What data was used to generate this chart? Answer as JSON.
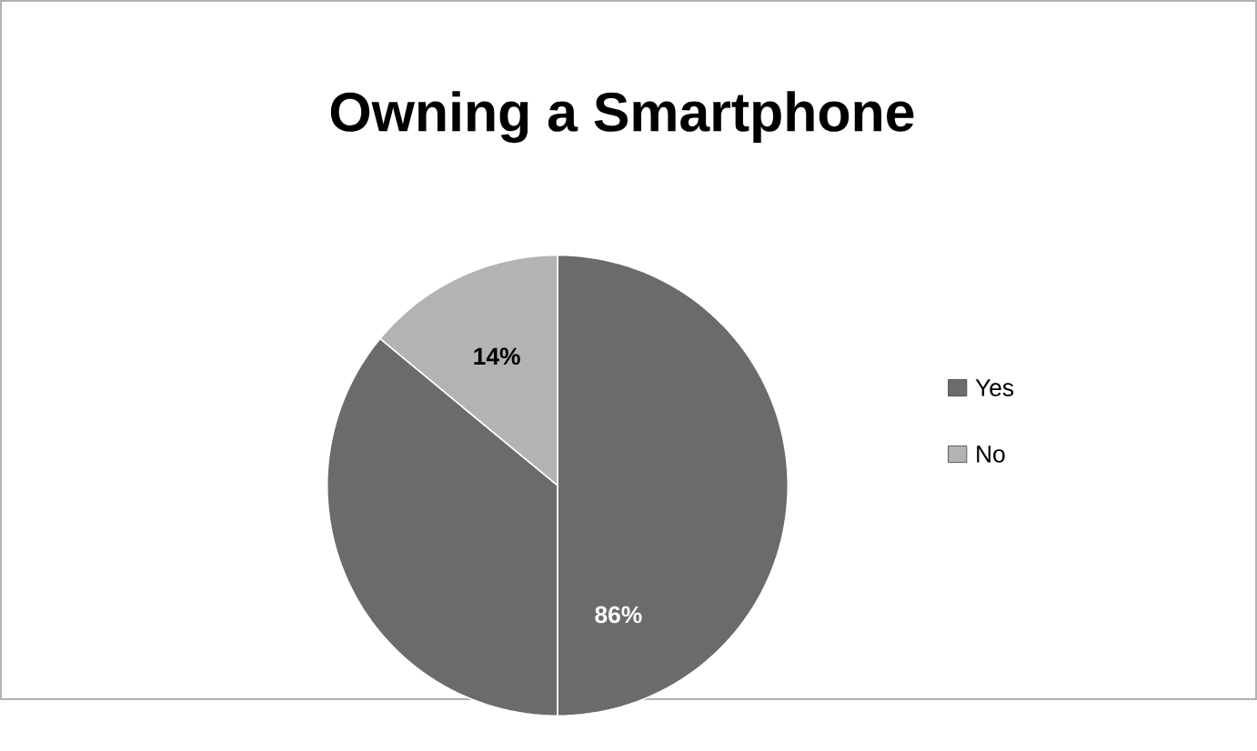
{
  "chart_data": {
    "type": "pie",
    "title": "Owning a Smartphone",
    "categories": [
      "Yes",
      "No"
    ],
    "values": [
      86,
      14
    ],
    "value_labels": [
      "86%",
      "14%"
    ],
    "colors": [
      "#6b6b6b",
      "#b3b3b3"
    ],
    "legend": "right"
  }
}
